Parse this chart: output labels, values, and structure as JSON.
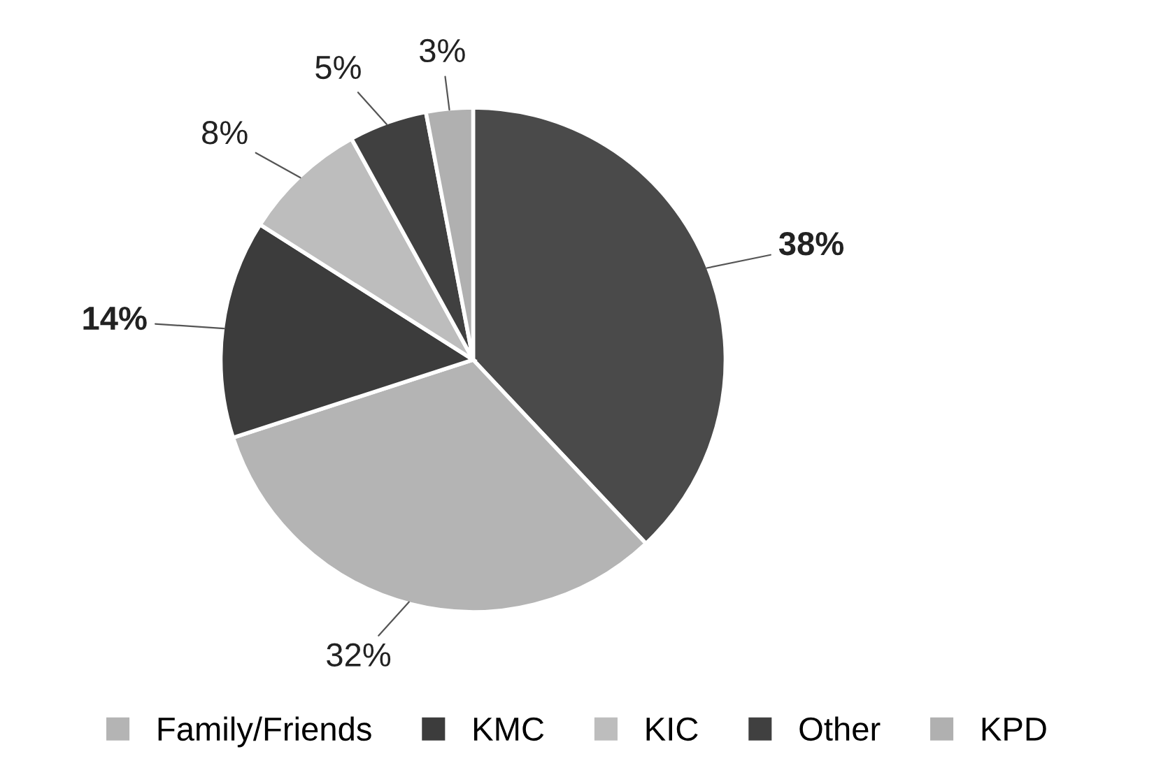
{
  "chart_data": {
    "type": "pie",
    "categories": [
      null,
      "Family/Friends",
      "KMC",
      "KIC",
      "Other",
      "KPD"
    ],
    "values": [
      38,
      32,
      14,
      8,
      5,
      3
    ],
    "colors": [
      "#4a4a4a",
      "#b4b4b4",
      "#3c3c3c",
      "#bdbdbd",
      "#404040",
      "#b0b0b0"
    ],
    "value_labels": [
      "38%",
      "32%",
      "14%",
      "8%",
      "5%",
      "3%"
    ],
    "legend": "bottom"
  }
}
